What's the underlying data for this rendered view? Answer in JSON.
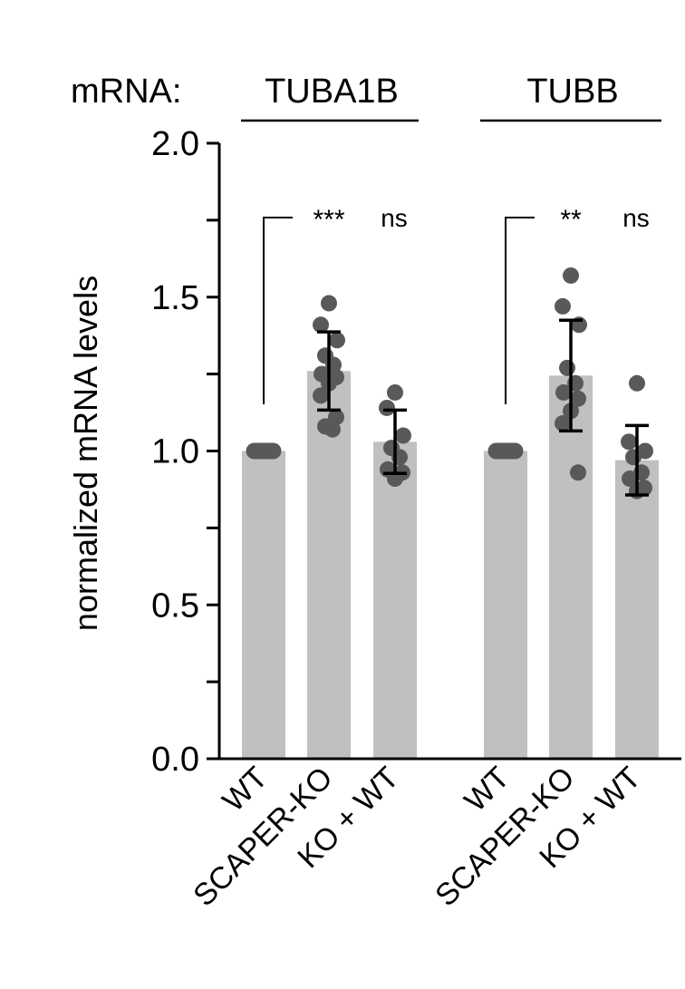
{
  "chart_data": {
    "type": "bar",
    "prefix_label": "mRNA:",
    "ylabel": "normalized mRNA levels",
    "ylim": [
      0,
      2.0
    ],
    "yticks": [
      "0.0",
      "0.5",
      "1.0",
      "1.5",
      "2.0"
    ],
    "bar_color": "#c0c0c0",
    "point_color": "#595959",
    "groups": [
      {
        "name": "TUBA1B",
        "categories": [
          "WT",
          "SCAPER-KO",
          "KO + WT"
        ],
        "means": [
          1.0,
          1.26,
          1.03
        ],
        "sd": [
          0,
          0.127,
          0.103
        ],
        "points": [
          [
            1.0,
            1.0,
            1.0,
            1.0,
            1.0,
            1.0,
            1.0,
            1.0
          ],
          [
            1.48,
            1.41,
            1.36,
            1.31,
            1.28,
            1.25,
            1.24,
            1.22,
            1.18,
            1.11,
            1.08,
            1.07
          ],
          [
            1.19,
            1.14,
            1.05,
            1.01,
            0.98,
            0.94,
            0.93,
            0.91
          ]
        ],
        "significance": [
          "***",
          "ns"
        ]
      },
      {
        "name": "TUBB",
        "categories": [
          "WT",
          "SCAPER-KO",
          "KO + WT"
        ],
        "means": [
          1.0,
          1.245,
          0.97
        ],
        "sd": [
          0,
          0.18,
          0.113
        ],
        "points": [
          [
            1.0,
            1.0,
            1.0,
            1.0,
            1.0,
            1.0,
            1.0,
            1.0
          ],
          [
            1.57,
            1.47,
            1.41,
            1.27,
            1.22,
            1.19,
            1.17,
            1.13,
            1.09,
            0.93
          ],
          [
            1.22,
            1.03,
            1.0,
            0.98,
            0.93,
            0.91,
            0.88,
            0.87
          ]
        ],
        "significance": [
          "**",
          "ns"
        ]
      }
    ]
  }
}
